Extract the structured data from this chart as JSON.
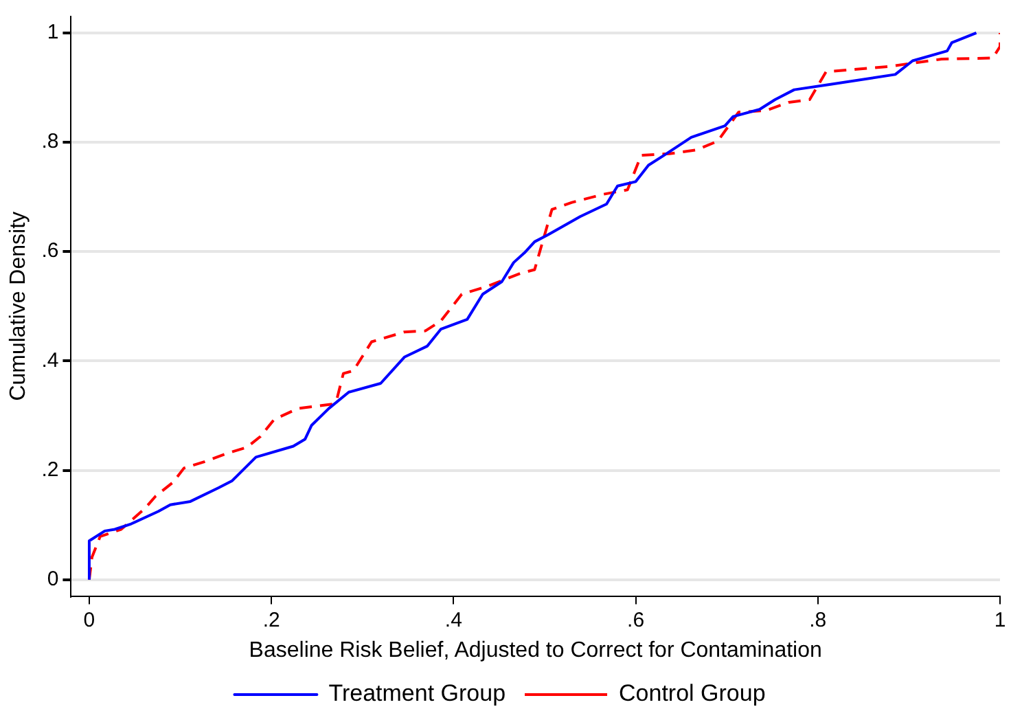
{
  "chart_data": {
    "type": "line",
    "xlabel": "Baseline Risk Belief, Adjusted to Correct for Contamination",
    "ylabel": "Cumulative Density",
    "xlim": [
      -0.02,
      1.0
    ],
    "ylim": [
      -0.03,
      1.03
    ],
    "xticks": [
      0,
      {
        "value": 0.2,
        "label": ".2"
      },
      {
        "value": 0.4,
        "label": ".4"
      },
      {
        "value": 0.6,
        "label": ".6"
      },
      {
        "value": 0.8,
        "label": ".8"
      },
      1
    ],
    "yticks": [
      0,
      {
        "value": 0.2,
        "label": ".2"
      },
      {
        "value": 0.4,
        "label": ".4"
      },
      {
        "value": 0.6,
        "label": ".6"
      },
      {
        "value": 0.8,
        "label": ".8"
      },
      1
    ],
    "grid": "y",
    "legend": "bottom",
    "marker": "none",
    "series": [
      {
        "name": "Treatment Group",
        "color": "#0000ff",
        "line_style": "solid",
        "x": [
          0,
          0,
          0.017,
          0.028,
          0.046,
          0.076,
          0.089,
          0.111,
          0.142,
          0.157,
          0.183,
          0.224,
          0.237,
          0.244,
          0.263,
          0.285,
          0.32,
          0.346,
          0.371,
          0.386,
          0.415,
          0.432,
          0.453,
          0.466,
          0.478,
          0.489,
          0.504,
          0.539,
          0.568,
          0.58,
          0.6,
          0.614,
          0.631,
          0.661,
          0.698,
          0.707,
          0.736,
          0.753,
          0.774,
          0.814,
          0.885,
          0.904,
          0.942,
          0.947,
          0.974
        ],
        "values": [
          0,
          0.071,
          0.089,
          0.092,
          0.102,
          0.125,
          0.137,
          0.143,
          0.168,
          0.181,
          0.224,
          0.244,
          0.257,
          0.282,
          0.313,
          0.343,
          0.359,
          0.407,
          0.427,
          0.458,
          0.476,
          0.522,
          0.545,
          0.58,
          0.598,
          0.618,
          0.631,
          0.664,
          0.687,
          0.72,
          0.728,
          0.758,
          0.776,
          0.809,
          0.83,
          0.847,
          0.86,
          0.878,
          0.896,
          0.906,
          0.924,
          0.949,
          0.967,
          0.982,
          1.0
        ]
      },
      {
        "name": "Control Group",
        "color": "#ff0000",
        "line_style": "dashed",
        "x": [
          0,
          0.003,
          0.012,
          0.035,
          0.061,
          0.073,
          0.092,
          0.104,
          0.127,
          0.153,
          0.173,
          0.188,
          0.203,
          0.229,
          0.267,
          0.272,
          0.279,
          0.29,
          0.31,
          0.346,
          0.369,
          0.386,
          0.409,
          0.438,
          0.473,
          0.489,
          0.508,
          0.53,
          0.565,
          0.591,
          0.606,
          0.637,
          0.667,
          0.69,
          0.713,
          0.743,
          0.768,
          0.791,
          0.809,
          0.881,
          0.901,
          0.936,
          0.992,
          1.0,
          1.0
        ],
        "values": [
          0,
          0.041,
          0.079,
          0.092,
          0.13,
          0.153,
          0.178,
          0.204,
          0.216,
          0.232,
          0.242,
          0.262,
          0.293,
          0.313,
          0.321,
          0.331,
          0.377,
          0.382,
          0.435,
          0.453,
          0.455,
          0.473,
          0.522,
          0.537,
          0.56,
          0.567,
          0.677,
          0.69,
          0.705,
          0.713,
          0.776,
          0.779,
          0.786,
          0.802,
          0.855,
          0.858,
          0.873,
          0.878,
          0.929,
          0.939,
          0.944,
          0.952,
          0.954,
          0.975,
          1.0
        ]
      }
    ]
  }
}
